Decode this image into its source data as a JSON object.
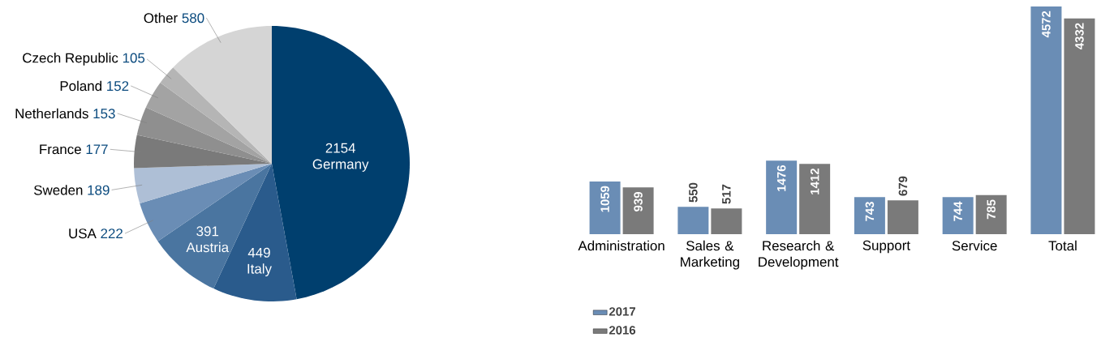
{
  "chart_data": [
    {
      "type": "pie",
      "categories": [
        "Germany",
        "Italy",
        "Austria",
        "USA",
        "Sweden",
        "France",
        "Netherlands",
        "Poland",
        "Czech Republic",
        "Other"
      ],
      "values": [
        2154,
        449,
        391,
        222,
        189,
        177,
        153,
        152,
        105,
        580
      ],
      "colors": [
        "#003f6e",
        "#2a5b8c",
        "#4a75a0",
        "#6a8db5",
        "#aebfd6",
        "#7a7a7a",
        "#8f8f8f",
        "#a3a3a3",
        "#b5b5b5",
        "#d5d5d5"
      ],
      "data_labels": true
    },
    {
      "type": "bar",
      "categories": [
        "Administration",
        "Sales & Marketing",
        "Research & Development",
        "Support",
        "Service",
        "Total"
      ],
      "series": [
        {
          "name": "2017",
          "color": "#6a8db5",
          "values": [
            1059,
            550,
            1476,
            743,
            744,
            4572
          ]
        },
        {
          "name": "2016",
          "color": "#7a7a7a",
          "values": [
            939,
            517,
            1412,
            679,
            785,
            4332
          ]
        }
      ],
      "data_labels": true,
      "legend": "bottom left"
    }
  ]
}
